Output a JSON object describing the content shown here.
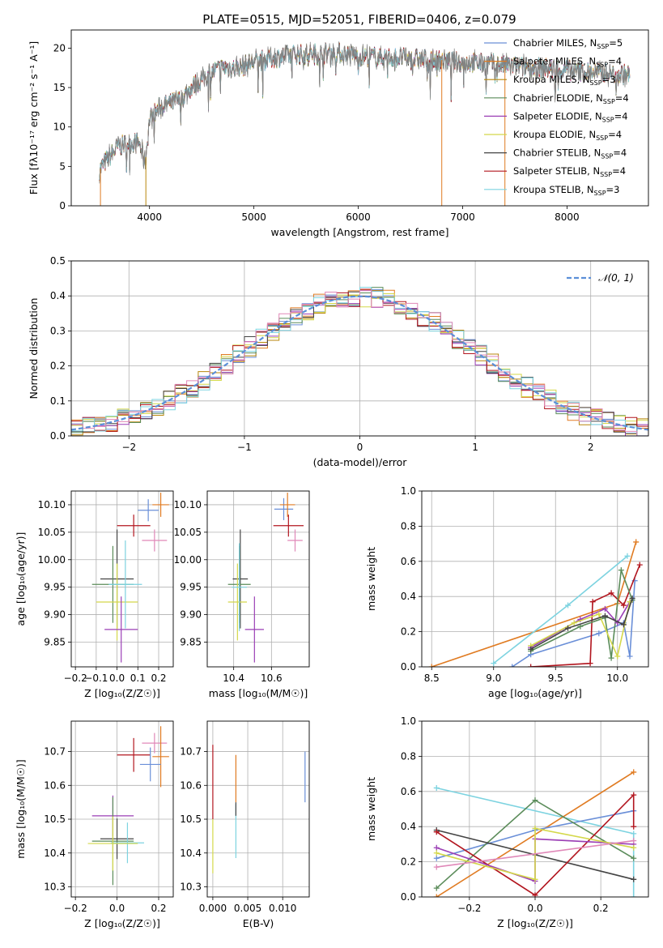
{
  "figure": {
    "title": "PLATE=0515, MJD=52051, FIBERID=0406, z=0.079"
  },
  "chart_data": [
    {
      "id": "spectrum",
      "type": "line",
      "xlabel": "wavelength [Angstrom, rest frame]",
      "ylabel": "Flux [fλ10⁻¹⁷ erg cm⁻² s⁻¹ A⁻¹]",
      "xlim": [
        3250,
        8780
      ],
      "ylim": [
        0,
        22.3
      ],
      "xticks": [
        4000,
        5000,
        6000,
        7000,
        8000
      ],
      "yticks": [
        0,
        5,
        10,
        15,
        20
      ],
      "grid": false,
      "legend_position": "right",
      "legend": [
        {
          "label": "Chabrier MILES, N",
          "sub": "SSP",
          "suffix": "=5",
          "color": "#6a8fd8",
          "marker": "+"
        },
        {
          "label": "Salpeter MILES, N",
          "sub": "SSP",
          "suffix": "=4",
          "color": "#e07b22"
        },
        {
          "label": "Kroupa MILES, N",
          "sub": "SSP",
          "suffix": "=3",
          "color": "#b8860b"
        },
        {
          "label": "Chabrier ELODIE, N",
          "sub": "SSP",
          "suffix": "=4",
          "color": "#5b8c5a"
        },
        {
          "label": "Salpeter ELODIE, N",
          "sub": "SSP",
          "suffix": "=4",
          "color": "#9b3fb5"
        },
        {
          "label": "Kroupa ELODIE, N",
          "sub": "SSP",
          "suffix": "=4",
          "color": "#d4d84a"
        },
        {
          "label": "Chabrier STELIB, N",
          "sub": "SSP",
          "suffix": "=4",
          "color": "#444444"
        },
        {
          "label": "Salpeter STELIB, N",
          "sub": "SSP",
          "suffix": "=4",
          "color": "#b2161f"
        },
        {
          "label": "Kroupa STELIB, N",
          "sub": "SSP",
          "suffix": "=3",
          "color": "#7dd3e0"
        }
      ],
      "continuum": {
        "x": [
          3520,
          3600,
          3700,
          3800,
          3900,
          3960,
          4000,
          4100,
          4200,
          4300,
          4400,
          4500,
          4600,
          4700,
          4800,
          4900,
          5000,
          5100,
          5200,
          5300,
          5400,
          5500,
          5600,
          5700,
          5800,
          5900,
          6000,
          6100,
          6200,
          6300,
          6400,
          6500,
          6600,
          6700,
          6800,
          6900,
          7000,
          7100,
          7200,
          7300,
          7400,
          7600,
          7800,
          8000,
          8200,
          8400,
          8600
        ],
        "y": [
          4.5,
          6.0,
          7.5,
          8.0,
          8.0,
          5.5,
          11.0,
          12.5,
          13.0,
          13.5,
          15.0,
          16.0,
          17.0,
          17.5,
          17.5,
          17.7,
          18.3,
          18.5,
          18.8,
          19.0,
          19.2,
          19.2,
          19.3,
          19.3,
          19.4,
          19.2,
          19.0,
          19.0,
          18.8,
          18.8,
          18.8,
          18.6,
          18.6,
          18.4,
          18.5,
          18.3,
          18.2,
          18.2,
          18.0,
          18.0,
          17.8,
          17.6,
          17.4,
          17.2,
          17.0,
          16.8,
          16.6
        ]
      }
    },
    {
      "id": "residuals",
      "type": "step",
      "xlabel": "(data-model)/error",
      "ylabel": "Normed distribution",
      "xlim": [
        -2.5,
        2.5
      ],
      "ylim": [
        0,
        0.5
      ],
      "xticks": [
        -2,
        -1,
        0,
        1,
        2
      ],
      "yticks": [
        0.0,
        0.1,
        0.2,
        0.3,
        0.4,
        0.5
      ],
      "grid": true,
      "legend_position": "top-right",
      "legend": [
        {
          "label": "𝒩(0, 1)",
          "color": "#5b8fd8",
          "style": "dashed"
        }
      ],
      "bin_width": 0.1,
      "series_colors": [
        "#6a8fd8",
        "#e07b22",
        "#b8860b",
        "#5b8c5a",
        "#9b3fb5",
        "#d4d84a",
        "#444444",
        "#b2161f",
        "#7dd3e0",
        "#e088b8"
      ]
    },
    {
      "id": "age-vs-Z",
      "type": "errorbar",
      "xlabel": "Z [log₁₀(Z/Z☉)]",
      "ylabel": "age  [log₁₀(age/yr)]",
      "xlim": [
        -0.22,
        0.27
      ],
      "ylim": [
        9.805,
        10.125
      ],
      "xticks": [
        -0.2,
        -0.1,
        0.0,
        0.1,
        0.2
      ],
      "yticks": [
        9.85,
        9.9,
        9.95,
        10.0,
        10.05,
        10.1
      ],
      "grid": true,
      "points": [
        {
          "x": 0.15,
          "y": 10.09,
          "xerr": 0.05,
          "yerr": 0.02,
          "color": "#6a8fd8"
        },
        {
          "x": 0.21,
          "y": 10.1,
          "xerr": 0.04,
          "yerr": 0.022,
          "color": "#e07b22"
        },
        {
          "x": 0.18,
          "y": 10.035,
          "xerr": 0.06,
          "yerr": 0.02,
          "color": "#e088b8"
        },
        {
          "x": 0.08,
          "y": 10.062,
          "xerr": 0.08,
          "yerr": 0.02,
          "color": "#b2161f"
        },
        {
          "x": 0.0,
          "y": 9.965,
          "xerr": 0.08,
          "yerr": 0.09,
          "color": "#444444"
        },
        {
          "x": -0.02,
          "y": 9.955,
          "xerr": 0.1,
          "yerr": 0.07,
          "color": "#5b8c5a"
        },
        {
          "x": 0.0,
          "y": 9.923,
          "xerr": 0.1,
          "yerr": 0.07,
          "color": "#d4d84a"
        },
        {
          "x": 0.02,
          "y": 9.873,
          "xerr": 0.08,
          "yerr": 0.06,
          "color": "#9b3fb5"
        },
        {
          "x": 0.04,
          "y": 9.955,
          "xerr": 0.08,
          "yerr": 0.08,
          "color": "#7dd3e0"
        }
      ]
    },
    {
      "id": "age-vs-mass",
      "type": "errorbar",
      "xlabel": "mass [log₁₀(M/M☉)]",
      "ylabel": "",
      "xlim": [
        10.26,
        10.8
      ],
      "ylim": [
        9.805,
        10.125
      ],
      "xticks": [
        10.4,
        10.6
      ],
      "yticks": [
        9.85,
        9.9,
        9.95,
        10.0,
        10.05,
        10.1
      ],
      "grid": true,
      "points": [
        {
          "x": 10.665,
          "y": 10.092,
          "xerr": 0.05,
          "yerr": 0.02,
          "color": "#6a8fd8"
        },
        {
          "x": 10.685,
          "y": 10.1,
          "xerr": 0.04,
          "yerr": 0.022,
          "color": "#e07b22"
        },
        {
          "x": 10.725,
          "y": 10.035,
          "xerr": 0.04,
          "yerr": 0.02,
          "color": "#e088b8"
        },
        {
          "x": 10.69,
          "y": 10.062,
          "xerr": 0.08,
          "yerr": 0.02,
          "color": "#b2161f"
        },
        {
          "x": 10.435,
          "y": 9.965,
          "xerr": 0.04,
          "yerr": 0.09,
          "color": "#444444"
        },
        {
          "x": 10.43,
          "y": 9.955,
          "xerr": 0.06,
          "yerr": 0.07,
          "color": "#5b8c5a"
        },
        {
          "x": 10.42,
          "y": 9.923,
          "xerr": 0.05,
          "yerr": 0.07,
          "color": "#d4d84a"
        },
        {
          "x": 10.51,
          "y": 9.873,
          "xerr": 0.05,
          "yerr": 0.06,
          "color": "#9b3fb5"
        },
        {
          "x": 10.43,
          "y": 9.95,
          "xerr": 0.04,
          "yerr": 0.08,
          "color": "#7dd3e0"
        }
      ]
    },
    {
      "id": "mass-weight-vs-age",
      "type": "line",
      "xlabel": "age  [log₁₀(age/yr)]",
      "ylabel": "mass weight",
      "xlim": [
        8.42,
        10.25
      ],
      "ylim": [
        0,
        1.0
      ],
      "xticks": [
        8.5,
        9.0,
        9.5,
        10.0
      ],
      "yticks": [
        0.0,
        0.2,
        0.4,
        0.6,
        0.8,
        1.0
      ],
      "grid": true,
      "series": [
        {
          "color": "#6a8fd8",
          "x": [
            9.15,
            9.3,
            9.85,
            10.05,
            10.1,
            10.14
          ],
          "y": [
            0.0,
            0.07,
            0.19,
            0.25,
            0.06,
            0.49
          ]
        },
        {
          "color": "#e07b22",
          "x": [
            8.5,
            10.0,
            10.15
          ],
          "y": [
            0.0,
            0.36,
            0.71
          ]
        },
        {
          "color": "#7dd3e0",
          "x": [
            9.0,
            9.6,
            10.08
          ],
          "y": [
            0.02,
            0.35,
            0.63
          ]
        },
        {
          "color": "#b2161f",
          "x": [
            9.3,
            9.78,
            9.8,
            9.95,
            10.05,
            10.18
          ],
          "y": [
            0.0,
            0.02,
            0.37,
            0.42,
            0.35,
            0.58
          ]
        },
        {
          "color": "#5b8c5a",
          "x": [
            9.3,
            9.7,
            9.9,
            9.95,
            10.03,
            10.12
          ],
          "y": [
            0.09,
            0.23,
            0.28,
            0.05,
            0.55,
            0.38
          ]
        },
        {
          "color": "#9b3fb5",
          "x": [
            9.3,
            9.7,
            9.9,
            10.0,
            10.1
          ],
          "y": [
            0.11,
            0.27,
            0.33,
            0.25,
            0.37
          ]
        },
        {
          "color": "#d4d84a",
          "x": [
            9.3,
            9.65,
            9.85,
            10.0,
            10.1
          ],
          "y": [
            0.12,
            0.25,
            0.3,
            0.06,
            0.37
          ]
        },
        {
          "color": "#444444",
          "x": [
            9.3,
            9.6,
            9.9,
            10.05,
            10.12
          ],
          "y": [
            0.1,
            0.22,
            0.29,
            0.24,
            0.39
          ]
        }
      ]
    },
    {
      "id": "mass-vs-Z",
      "type": "errorbar",
      "xlabel": "Z [log₁₀(Z/Z☉)]",
      "ylabel": "mass [log₁₀(M/M☉)]",
      "xlim": [
        -0.22,
        0.27
      ],
      "ylim": [
        10.27,
        10.79
      ],
      "xticks": [
        -0.2,
        0.0,
        0.2
      ],
      "yticks": [
        10.3,
        10.4,
        10.5,
        10.6,
        10.7
      ],
      "grid": true,
      "points": [
        {
          "x": 0.18,
          "y": 10.725,
          "xerr": 0.06,
          "yerr": 0.03,
          "color": "#e088b8"
        },
        {
          "x": 0.21,
          "y": 10.685,
          "xerr": 0.04,
          "yerr": 0.09,
          "color": "#e07b22"
        },
        {
          "x": 0.08,
          "y": 10.69,
          "xerr": 0.08,
          "yerr": 0.05,
          "color": "#b2161f"
        },
        {
          "x": 0.16,
          "y": 10.662,
          "xerr": 0.05,
          "yerr": 0.05,
          "color": "#6a8fd8"
        },
        {
          "x": -0.02,
          "y": 10.51,
          "xerr": 0.1,
          "yerr": 0.06,
          "color": "#9b3fb5"
        },
        {
          "x": 0.0,
          "y": 10.442,
          "xerr": 0.08,
          "yerr": 0.06,
          "color": "#444444"
        },
        {
          "x": -0.02,
          "y": 10.435,
          "xerr": 0.1,
          "yerr": 0.13,
          "color": "#5b8c5a"
        },
        {
          "x": 0.05,
          "y": 10.43,
          "xerr": 0.08,
          "yerr": 0.06,
          "color": "#7dd3e0"
        },
        {
          "x": -0.02,
          "y": 10.428,
          "xerr": 0.12,
          "yerr": 0.08,
          "color": "#d4d84a"
        }
      ]
    },
    {
      "id": "mass-vs-ebv",
      "type": "errorbar",
      "xlabel": "E(B-V)",
      "ylabel": "",
      "xlim": [
        -0.0008,
        0.0138
      ],
      "ylim": [
        10.27,
        10.79
      ],
      "xticks": [
        0.0,
        0.005,
        0.01
      ],
      "xticklabels": [
        "0.000",
        "0.005",
        "0.010"
      ],
      "yticks": [
        10.3,
        10.4,
        10.5,
        10.6,
        10.7
      ],
      "grid": true,
      "points": [
        {
          "x": 0.0,
          "y": 10.61,
          "xerr": 0.0,
          "yerr": 0.11,
          "color": "#b2161f"
        },
        {
          "x": 0.0,
          "y": 10.42,
          "xerr": 0.0,
          "yerr": 0.08,
          "color": "#d4d84a"
        },
        {
          "x": 0.0033,
          "y": 10.62,
          "xerr": 0.0,
          "yerr": 0.07,
          "color": "#e07b22"
        },
        {
          "x": 0.0033,
          "y": 10.465,
          "xerr": 0.0,
          "yerr": 0.08,
          "color": "#7dd3e0"
        },
        {
          "x": 0.0033,
          "y": 10.53,
          "xerr": 0.0,
          "yerr": 0.02,
          "color": "#444444"
        },
        {
          "x": 0.0132,
          "y": 10.625,
          "xerr": 0.0,
          "yerr": 0.075,
          "color": "#6a8fd8"
        }
      ]
    },
    {
      "id": "mass-weight-vs-Z",
      "type": "line",
      "xlabel": "Z [log₁₀(Z/Z☉)]",
      "ylabel": "mass weight",
      "xlim": [
        -0.345,
        0.345
      ],
      "ylim": [
        0,
        1.0
      ],
      "xticks": [
        -0.2,
        0.0,
        0.2
      ],
      "yticks": [
        0.0,
        0.2,
        0.4,
        0.6,
        0.8,
        1.0
      ],
      "grid": true,
      "series": [
        {
          "color": "#7dd3e0",
          "x": [
            -0.3,
            0.3,
            0.3
          ],
          "y": [
            0.62,
            0.36,
            0.0
          ]
        },
        {
          "color": "#e07b22",
          "x": [
            -0.3,
            0.3
          ],
          "y": [
            0.0,
            0.71
          ]
        },
        {
          "color": "#6a8fd8",
          "x": [
            -0.3,
            0.0,
            0.3
          ],
          "y": [
            0.22,
            0.38,
            0.49
          ]
        },
        {
          "color": "#5b8c5a",
          "x": [
            -0.3,
            0.0,
            0.3
          ],
          "y": [
            0.05,
            0.55,
            0.22
          ]
        },
        {
          "color": "#444444",
          "x": [
            -0.3,
            0.0,
            0.3
          ],
          "y": [
            0.38,
            0.24,
            0.1
          ]
        },
        {
          "color": "#b2161f",
          "x": [
            -0.3,
            0.0,
            0.3,
            0.3
          ],
          "y": [
            0.37,
            0.01,
            0.58,
            0.4
          ]
        },
        {
          "color": "#9b3fb5",
          "x": [
            -0.3,
            0.0,
            0.0,
            0.3
          ],
          "y": [
            0.28,
            0.09,
            0.33,
            0.3
          ]
        },
        {
          "color": "#d4d84a",
          "x": [
            -0.3,
            0.0,
            0.0,
            0.3
          ],
          "y": [
            0.25,
            0.1,
            0.39,
            0.28
          ]
        },
        {
          "color": "#e088b8",
          "x": [
            -0.3,
            0.3
          ],
          "y": [
            0.17,
            0.32
          ]
        }
      ]
    }
  ]
}
